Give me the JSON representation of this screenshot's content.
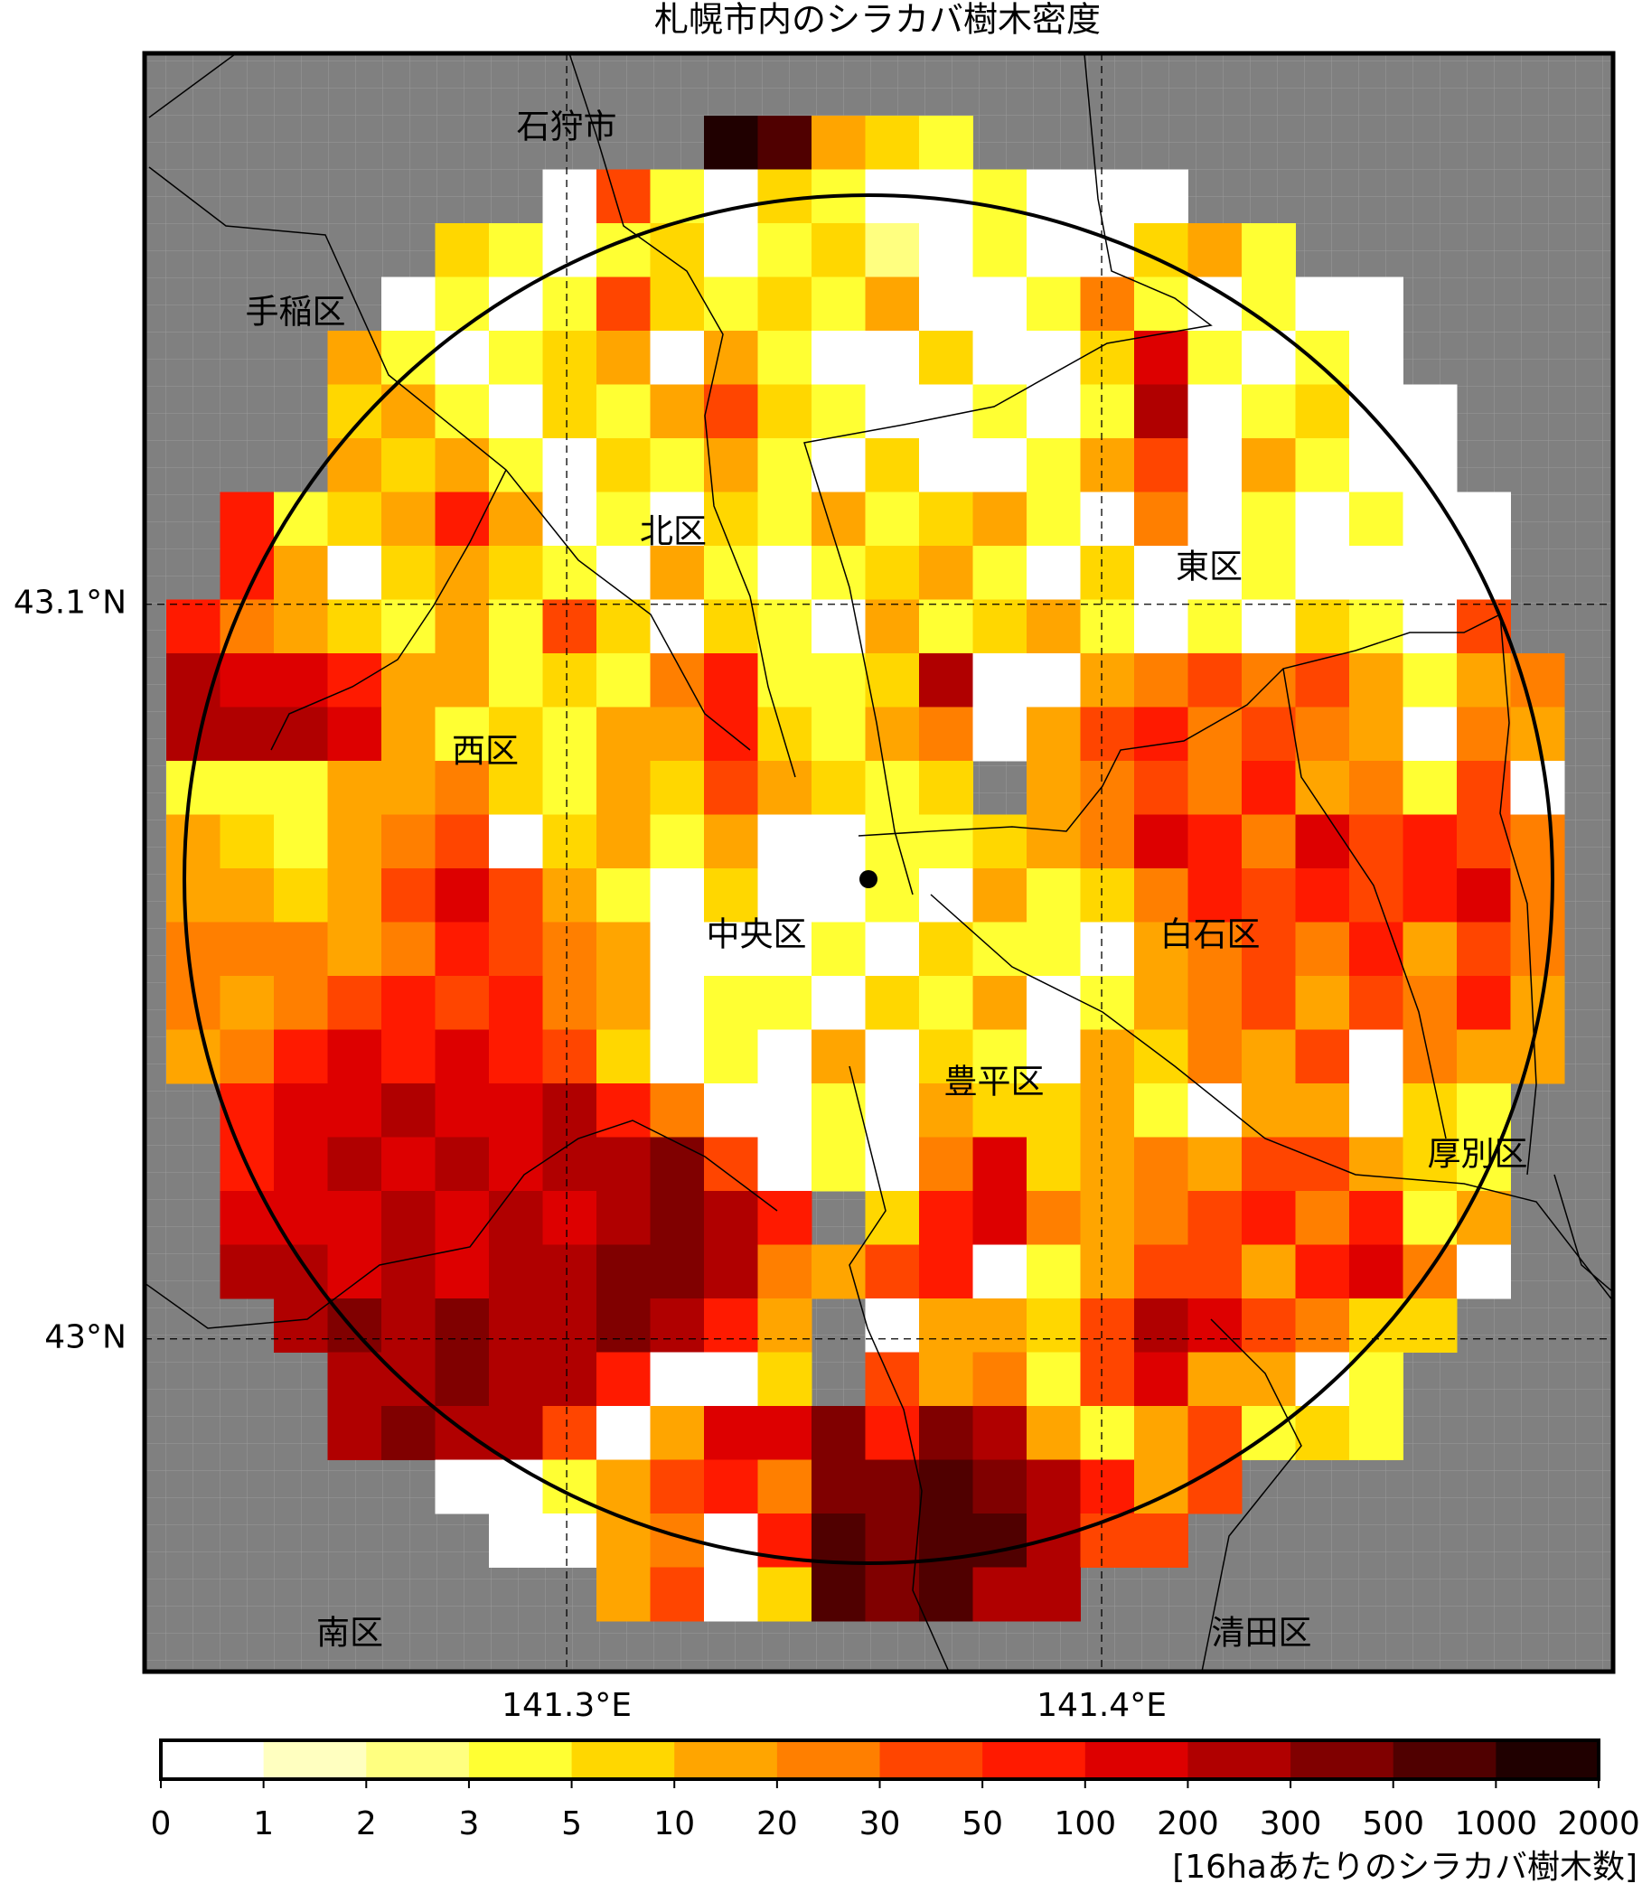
{
  "chart_data": {
    "type": "heatmap",
    "title": "札幌市内のシラカバ樹木密度",
    "xlim": [
      141.2211,
      141.4956
    ],
    "ylim": [
      42.9547,
      43.175
    ],
    "xticks": [
      {
        "value": 141.3,
        "label": "141.3°E"
      },
      {
        "value": 141.4,
        "label": "141.4°E"
      }
    ],
    "yticks": [
      {
        "value": 43.1,
        "label": "43.1°N"
      },
      {
        "value": 43.0,
        "label": "43°N"
      }
    ],
    "grid": true,
    "districts": [
      "石狩市",
      "手稲区",
      "北区",
      "東区",
      "西区",
      "中央区",
      "白石区",
      "豊平区",
      "厚別区",
      "南区",
      "清田区"
    ],
    "colorbar": {
      "boundaries": [
        0,
        1,
        2,
        3,
        5,
        10,
        20,
        30,
        50,
        100,
        200,
        300,
        500,
        1000,
        2000
      ],
      "colors": [
        "#ffffff",
        "#ffffc0",
        "#ffff80",
        "#ffff33",
        "#ffd700",
        "#ffa500",
        "#ff7f00",
        "#ff4500",
        "#ff1a00",
        "#dd0000",
        "#b00000",
        "#800000",
        "#500000",
        "#200000"
      ],
      "label": "[16haあたりのシラカバ樹木数]"
    },
    "grid_values": [
      [
        null,
        null,
        null,
        null,
        null,
        null,
        null,
        null,
        null,
        null,
        1500,
        750,
        15,
        7,
        4,
        null,
        null,
        null,
        null,
        null,
        null,
        null,
        null,
        null,
        null,
        null
      ],
      [
        null,
        null,
        null,
        null,
        null,
        null,
        null,
        0,
        40,
        4,
        0,
        7,
        4,
        0,
        0,
        4,
        0,
        0,
        0,
        null,
        null,
        null,
        null,
        null,
        null,
        null
      ],
      [
        null,
        null,
        null,
        null,
        null,
        7,
        4,
        0,
        4,
        7,
        0,
        4,
        7,
        2.5,
        0,
        4,
        0,
        0,
        7,
        15,
        4,
        null,
        null,
        null,
        null,
        null
      ],
      [
        null,
        null,
        null,
        null,
        0,
        4,
        0,
        4,
        40,
        7,
        4,
        7,
        4,
        15,
        0,
        0,
        4,
        25,
        4,
        0,
        4,
        0,
        0,
        null,
        null,
        null
      ],
      [
        null,
        null,
        null,
        15,
        4,
        0,
        4,
        7,
        15,
        0,
        15,
        4,
        0,
        0,
        7,
        0,
        0,
        7,
        150,
        4,
        0,
        4,
        0,
        null,
        null,
        null
      ],
      [
        null,
        null,
        null,
        7,
        15,
        4,
        0,
        7,
        4,
        15,
        40,
        7,
        4,
        0,
        0,
        4,
        0,
        4,
        250,
        0,
        4,
        7,
        0,
        0,
        null,
        null
      ],
      [
        null,
        null,
        null,
        15,
        7,
        15,
        4,
        0,
        7,
        4,
        15,
        4,
        0,
        7,
        0,
        0,
        4,
        15,
        40,
        0,
        15,
        4,
        0,
        0,
        null,
        null
      ],
      [
        null,
        75,
        4,
        7,
        15,
        75,
        15,
        0,
        4,
        0,
        7,
        4,
        15,
        4,
        7,
        15,
        4,
        0,
        25,
        0,
        4,
        0,
        4,
        0,
        0,
        null
      ],
      [
        null,
        75,
        15,
        0,
        7,
        15,
        7,
        4,
        0,
        15,
        4,
        0,
        4,
        7,
        15,
        4,
        0,
        7,
        0,
        0,
        4,
        0,
        0,
        0,
        0,
        null
      ],
      [
        75,
        25,
        15,
        7,
        4,
        15,
        4,
        40,
        7,
        0,
        7,
        4,
        0,
        15,
        4,
        7,
        15,
        4,
        0,
        4,
        0,
        7,
        4,
        0,
        40,
        null
      ],
      [
        250,
        150,
        150,
        75,
        15,
        15,
        4,
        7,
        4,
        25,
        75,
        4,
        4,
        7,
        250,
        0,
        0,
        15,
        25,
        40,
        25,
        40,
        15,
        4,
        15,
        25
      ],
      [
        250,
        250,
        250,
        150,
        15,
        4,
        7,
        4,
        15,
        15,
        75,
        7,
        4,
        15,
        25,
        0,
        15,
        40,
        75,
        25,
        40,
        25,
        15,
        0,
        25,
        15
      ],
      [
        4,
        4,
        4,
        15,
        15,
        25,
        7,
        4,
        15,
        7,
        40,
        15,
        7,
        4,
        7,
        null,
        15,
        25,
        40,
        25,
        75,
        15,
        25,
        4,
        40,
        0
      ],
      [
        15,
        7,
        4,
        15,
        25,
        40,
        0,
        7,
        15,
        4,
        15,
        0,
        0,
        4,
        4,
        7,
        15,
        25,
        150,
        75,
        25,
        150,
        40,
        75,
        40,
        25
      ],
      [
        15,
        15,
        7,
        15,
        40,
        150,
        40,
        15,
        4,
        0,
        7,
        0,
        0,
        4,
        0,
        15,
        4,
        7,
        25,
        75,
        40,
        75,
        40,
        75,
        150,
        25
      ],
      [
        25,
        25,
        25,
        15,
        25,
        75,
        40,
        25,
        15,
        0,
        0,
        0,
        4,
        0,
        7,
        4,
        4,
        0,
        15,
        25,
        40,
        25,
        75,
        15,
        40,
        25
      ],
      [
        25,
        15,
        25,
        40,
        75,
        40,
        75,
        25,
        15,
        0,
        4,
        4,
        0,
        7,
        4,
        15,
        0,
        4,
        15,
        25,
        40,
        15,
        40,
        25,
        75,
        15
      ],
      [
        15,
        25,
        75,
        150,
        75,
        150,
        75,
        40,
        7,
        0,
        4,
        0,
        15,
        0,
        7,
        4,
        0,
        15,
        7,
        25,
        15,
        40,
        0,
        25,
        15,
        15
      ],
      [
        null,
        75,
        150,
        150,
        250,
        150,
        150,
        250,
        75,
        25,
        0,
        0,
        4,
        0,
        15,
        7,
        7,
        15,
        4,
        0,
        15,
        15,
        0,
        7,
        4,
        null
      ],
      [
        null,
        75,
        150,
        250,
        150,
        250,
        150,
        250,
        250,
        400,
        40,
        0,
        4,
        0,
        25,
        150,
        7,
        15,
        25,
        15,
        40,
        40,
        15,
        7,
        4,
        null
      ],
      [
        null,
        150,
        150,
        150,
        250,
        150,
        250,
        150,
        250,
        400,
        250,
        75,
        null,
        7,
        75,
        150,
        25,
        15,
        25,
        40,
        75,
        25,
        75,
        4,
        15,
        null
      ],
      [
        null,
        250,
        250,
        150,
        250,
        150,
        250,
        250,
        400,
        400,
        250,
        25,
        15,
        40,
        75,
        0,
        4,
        15,
        40,
        40,
        15,
        75,
        150,
        25,
        0,
        null
      ],
      [
        null,
        null,
        250,
        400,
        250,
        400,
        250,
        250,
        400,
        250,
        75,
        15,
        null,
        0,
        15,
        15,
        7,
        40,
        250,
        150,
        40,
        25,
        7,
        7,
        null,
        null
      ],
      [
        null,
        null,
        null,
        250,
        250,
        400,
        250,
        250,
        75,
        0,
        0,
        7,
        null,
        40,
        15,
        25,
        4,
        40,
        150,
        15,
        15,
        0,
        4,
        null,
        null,
        null
      ],
      [
        null,
        null,
        null,
        250,
        400,
        250,
        250,
        40,
        0,
        15,
        150,
        150,
        400,
        75,
        400,
        250,
        15,
        4,
        15,
        40,
        4,
        7,
        4,
        null,
        null,
        null
      ],
      [
        null,
        null,
        null,
        null,
        null,
        0,
        0,
        4,
        15,
        40,
        75,
        25,
        400,
        400,
        750,
        400,
        250,
        75,
        15,
        40,
        null,
        null,
        null,
        null,
        null,
        null
      ],
      [
        null,
        null,
        null,
        null,
        null,
        null,
        0,
        0,
        15,
        25,
        0,
        75,
        750,
        400,
        750,
        750,
        250,
        40,
        40,
        null,
        null,
        null,
        null,
        null,
        null,
        null
      ],
      [
        null,
        null,
        null,
        null,
        null,
        null,
        null,
        null,
        15,
        40,
        0,
        7,
        750,
        400,
        750,
        250,
        250,
        null,
        null,
        null,
        null,
        null,
        null,
        null,
        null,
        null
      ]
    ]
  }
}
